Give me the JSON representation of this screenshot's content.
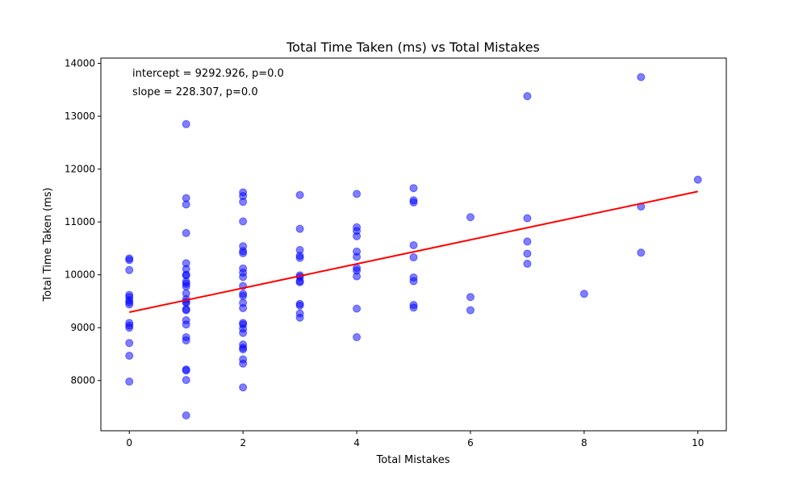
{
  "chart_data": {
    "type": "scatter",
    "title": "Total Time Taken (ms) vs Total Mistakes",
    "xlabel": "Total Mistakes",
    "ylabel": "Total Time Taken (ms)",
    "xlim": [
      -0.5,
      10.5
    ],
    "ylim": [
      7050,
      14100
    ],
    "xticks": [
      0,
      2,
      4,
      6,
      8,
      10
    ],
    "yticks": [
      8000,
      9000,
      10000,
      11000,
      12000,
      13000,
      14000
    ],
    "grid": false,
    "annotations": {
      "intercept": "intercept = 9292.926, p=0.0",
      "slope": "slope = 228.307, p=0.0"
    },
    "marker_color": "#0000ff",
    "marker_alpha": 0.5,
    "regression": {
      "intercept": 9292.926,
      "slope": 228.307,
      "color": "#ff0000",
      "x_range": [
        0,
        10
      ]
    },
    "points": [
      [
        0,
        10310
      ],
      [
        0,
        10280
      ],
      [
        0,
        10090
      ],
      [
        0,
        9620
      ],
      [
        0,
        9580
      ],
      [
        0,
        9520
      ],
      [
        0,
        9480
      ],
      [
        0,
        9440
      ],
      [
        0,
        9090
      ],
      [
        0,
        9040
      ],
      [
        0,
        9000
      ],
      [
        0,
        8710
      ],
      [
        0,
        8470
      ],
      [
        0,
        7980
      ],
      [
        1,
        12850
      ],
      [
        1,
        11450
      ],
      [
        1,
        11330
      ],
      [
        1,
        10790
      ],
      [
        1,
        10220
      ],
      [
        1,
        10110
      ],
      [
        1,
        10000
      ],
      [
        1,
        9990
      ],
      [
        1,
        9870
      ],
      [
        1,
        9830
      ],
      [
        1,
        9780
      ],
      [
        1,
        9650
      ],
      [
        1,
        9540
      ],
      [
        1,
        9490
      ],
      [
        1,
        9470
      ],
      [
        1,
        9350
      ],
      [
        1,
        9330
      ],
      [
        1,
        9140
      ],
      [
        1,
        9060
      ],
      [
        1,
        8820
      ],
      [
        1,
        8760
      ],
      [
        1,
        8210
      ],
      [
        1,
        8190
      ],
      [
        1,
        8010
      ],
      [
        1,
        7340
      ],
      [
        2,
        11560
      ],
      [
        2,
        11490
      ],
      [
        2,
        11380
      ],
      [
        2,
        11010
      ],
      [
        2,
        10540
      ],
      [
        2,
        10450
      ],
      [
        2,
        10410
      ],
      [
        2,
        10120
      ],
      [
        2,
        10040
      ],
      [
        2,
        9960
      ],
      [
        2,
        9790
      ],
      [
        2,
        9640
      ],
      [
        2,
        9600
      ],
      [
        2,
        9470
      ],
      [
        2,
        9370
      ],
      [
        2,
        9090
      ],
      [
        2,
        9060
      ],
      [
        2,
        8980
      ],
      [
        2,
        8900
      ],
      [
        2,
        8680
      ],
      [
        2,
        8620
      ],
      [
        2,
        8590
      ],
      [
        2,
        8400
      ],
      [
        2,
        8320
      ],
      [
        2,
        7870
      ],
      [
        3,
        11510
      ],
      [
        3,
        10870
      ],
      [
        3,
        10470
      ],
      [
        3,
        10360
      ],
      [
        3,
        10320
      ],
      [
        3,
        9990
      ],
      [
        3,
        9960
      ],
      [
        3,
        9880
      ],
      [
        3,
        9860
      ],
      [
        3,
        9450
      ],
      [
        3,
        9420
      ],
      [
        3,
        9270
      ],
      [
        3,
        9190
      ],
      [
        4,
        11530
      ],
      [
        4,
        10900
      ],
      [
        4,
        10830
      ],
      [
        4,
        10730
      ],
      [
        4,
        10440
      ],
      [
        4,
        10340
      ],
      [
        4,
        10130
      ],
      [
        4,
        10080
      ],
      [
        4,
        9970
      ],
      [
        4,
        9360
      ],
      [
        4,
        8820
      ],
      [
        5,
        11640
      ],
      [
        5,
        11410
      ],
      [
        5,
        11370
      ],
      [
        5,
        10560
      ],
      [
        5,
        10330
      ],
      [
        5,
        9950
      ],
      [
        5,
        9880
      ],
      [
        5,
        9430
      ],
      [
        5,
        9380
      ],
      [
        6,
        11090
      ],
      [
        6,
        9580
      ],
      [
        6,
        9330
      ],
      [
        7,
        13380
      ],
      [
        7,
        11070
      ],
      [
        7,
        10630
      ],
      [
        7,
        10400
      ],
      [
        7,
        10210
      ],
      [
        8,
        9640
      ],
      [
        9,
        13740
      ],
      [
        9,
        11290
      ],
      [
        9,
        10420
      ],
      [
        10,
        11800
      ]
    ]
  }
}
